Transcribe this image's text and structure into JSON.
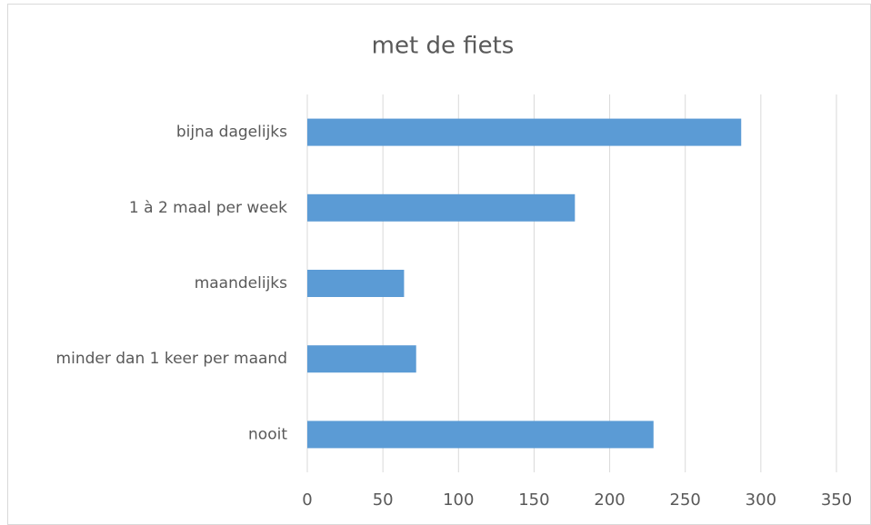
{
  "chart_data": {
    "type": "bar",
    "orientation": "horizontal",
    "title": "met de fiets",
    "categories": [
      "bijna dagelijks",
      "1 à 2 maal per week",
      "maandelijks",
      "minder dan 1 keer per maand",
      "nooit"
    ],
    "values": [
      287,
      177,
      64,
      72,
      229
    ],
    "color": "#5b9bd5",
    "xlim": [
      0,
      350
    ],
    "xticks": [
      0,
      50,
      100,
      150,
      200,
      250,
      300,
      350
    ],
    "grid": true
  }
}
